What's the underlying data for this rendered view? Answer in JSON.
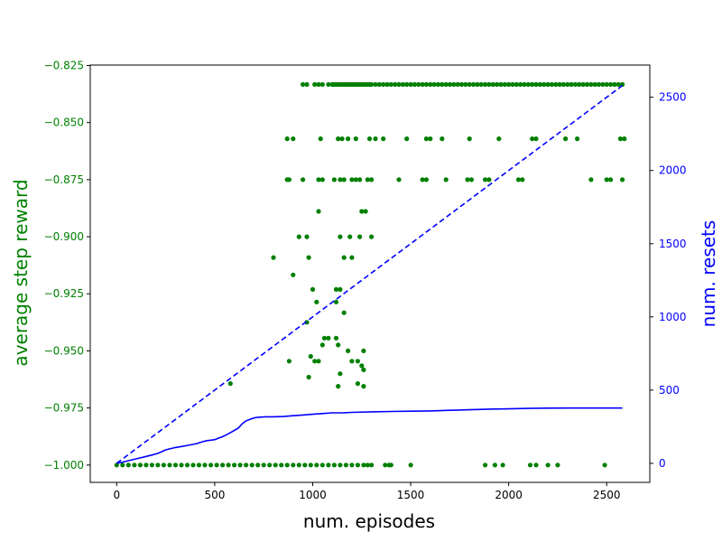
{
  "colors": {
    "left_axis": "#008000",
    "right_axis": "#0000ff",
    "frame": "#000000",
    "background": "#ffffff"
  },
  "chart_data": {
    "type": "scatter",
    "xlabel": "num. episodes",
    "ylabel_left": "average step reward",
    "ylabel_right": "num. resets",
    "xlim": [
      -135,
      2720
    ],
    "ylim_left": [
      -1.0076,
      -0.8248
    ],
    "ylim_right": [
      -130,
      2720
    ],
    "grid": false,
    "x_ticks": [
      0,
      500,
      1000,
      1500,
      2000,
      2500
    ],
    "y_left_ticks": [
      -1.0,
      -0.975,
      -0.95,
      -0.925,
      -0.9,
      -0.875,
      -0.85,
      -0.825
    ],
    "y_left_tick_labels": [
      "−1.000",
      "−0.975",
      "−0.950",
      "−0.925",
      "−0.900",
      "−0.875",
      "−0.850",
      "−0.825"
    ],
    "y_right_ticks": [
      0,
      500,
      1000,
      1500,
      2000,
      2500
    ],
    "series": [
      {
        "axis": "left",
        "style": "scatter",
        "color": "#008000",
        "x_band_bottom": [
          0,
          30,
          60,
          90,
          120,
          150,
          180,
          210,
          240,
          270,
          300,
          330,
          360,
          390,
          420,
          450,
          480,
          510,
          540,
          570,
          600,
          630,
          660,
          690,
          720,
          750,
          780,
          810,
          840,
          870,
          900,
          930,
          960,
          990,
          1020,
          1050,
          1080,
          1110,
          1140,
          1170,
          1200,
          1230,
          1260,
          1280,
          1300,
          1370,
          1390,
          1400,
          1500,
          1880,
          1930,
          1970,
          2110,
          2140,
          2200,
          2250,
          2490
        ],
        "y_band_bottom": -1.0,
        "x_band_top": [
          950,
          970,
          1010,
          1030,
          1050,
          1080,
          1100,
          1110,
          1120,
          1130,
          1140,
          1150,
          1160,
          1170,
          1180,
          1190,
          1200,
          1210,
          1220,
          1230,
          1240,
          1250,
          1260,
          1270,
          1280,
          1290,
          1300,
          1320,
          1340,
          1360,
          1380,
          1400,
          1420,
          1440,
          1460,
          1480,
          1500,
          1520,
          1540,
          1560,
          1580,
          1600,
          1620,
          1640,
          1660,
          1680,
          1700,
          1720,
          1740,
          1760,
          1780,
          1800,
          1820,
          1840,
          1860,
          1880,
          1900,
          1920,
          1940,
          1960,
          1980,
          2000,
          2020,
          2040,
          2060,
          2080,
          2100,
          2120,
          2140,
          2160,
          2180,
          2200,
          2220,
          2240,
          2260,
          2280,
          2300,
          2320,
          2340,
          2360,
          2380,
          2400,
          2420,
          2440,
          2460,
          2480,
          2500,
          2520,
          2540,
          2560,
          2580
        ],
        "y_band_top": -0.8333,
        "points": [
          [
            580,
            -0.9643
          ],
          [
            800,
            -0.9091
          ],
          [
            870,
            -0.8571
          ],
          [
            900,
            -0.8571
          ],
          [
            870,
            -0.875
          ],
          [
            880,
            -0.875
          ],
          [
            950,
            -0.875
          ],
          [
            1030,
            -0.875
          ],
          [
            1050,
            -0.875
          ],
          [
            1110,
            -0.875
          ],
          [
            1140,
            -0.875
          ],
          [
            1160,
            -0.875
          ],
          [
            1200,
            -0.875
          ],
          [
            1220,
            -0.875
          ],
          [
            1240,
            -0.875
          ],
          [
            1280,
            -0.875
          ],
          [
            1300,
            -0.875
          ],
          [
            1440,
            -0.875
          ],
          [
            1560,
            -0.875
          ],
          [
            1580,
            -0.875
          ],
          [
            1680,
            -0.875
          ],
          [
            1790,
            -0.875
          ],
          [
            1810,
            -0.875
          ],
          [
            1880,
            -0.875
          ],
          [
            1900,
            -0.875
          ],
          [
            2050,
            -0.875
          ],
          [
            2070,
            -0.875
          ],
          [
            2420,
            -0.875
          ],
          [
            2500,
            -0.875
          ],
          [
            2520,
            -0.875
          ],
          [
            2580,
            -0.875
          ],
          [
            1040,
            -0.8571
          ],
          [
            1130,
            -0.8571
          ],
          [
            1150,
            -0.8571
          ],
          [
            1180,
            -0.8571
          ],
          [
            1220,
            -0.8571
          ],
          [
            1290,
            -0.8571
          ],
          [
            1320,
            -0.8571
          ],
          [
            1360,
            -0.8571
          ],
          [
            1480,
            -0.8571
          ],
          [
            1580,
            -0.8571
          ],
          [
            1600,
            -0.8571
          ],
          [
            1660,
            -0.8571
          ],
          [
            1800,
            -0.8571
          ],
          [
            1950,
            -0.8571
          ],
          [
            2120,
            -0.8571
          ],
          [
            2140,
            -0.8571
          ],
          [
            2290,
            -0.8571
          ],
          [
            2350,
            -0.8571
          ],
          [
            2570,
            -0.8571
          ],
          [
            2590,
            -0.8571
          ],
          [
            1030,
            -0.8889
          ],
          [
            1250,
            -0.8889
          ],
          [
            1270,
            -0.8889
          ],
          [
            930,
            -0.9
          ],
          [
            970,
            -0.9
          ],
          [
            1140,
            -0.9
          ],
          [
            1190,
            -0.9
          ],
          [
            1240,
            -0.9
          ],
          [
            1300,
            -0.9
          ],
          [
            980,
            -0.9091
          ],
          [
            1160,
            -0.9091
          ],
          [
            1200,
            -0.9091
          ],
          [
            900,
            -0.9167
          ],
          [
            1000,
            -0.9231
          ],
          [
            1120,
            -0.9231
          ],
          [
            1140,
            -0.9231
          ],
          [
            1020,
            -0.9286
          ],
          [
            1120,
            -0.9286
          ],
          [
            1160,
            -0.9333
          ],
          [
            970,
            -0.9375
          ],
          [
            1060,
            -0.9444
          ],
          [
            1080,
            -0.9444
          ],
          [
            1120,
            -0.9444
          ],
          [
            1050,
            -0.9474
          ],
          [
            1130,
            -0.9474
          ],
          [
            1180,
            -0.95
          ],
          [
            1260,
            -0.95
          ],
          [
            990,
            -0.9524
          ],
          [
            880,
            -0.9545
          ],
          [
            1010,
            -0.9545
          ],
          [
            1030,
            -0.9545
          ],
          [
            1200,
            -0.9545
          ],
          [
            1230,
            -0.9545
          ],
          [
            1250,
            -0.9565
          ],
          [
            1260,
            -0.9583
          ],
          [
            1140,
            -0.96
          ],
          [
            980,
            -0.9615
          ],
          [
            1230,
            -0.9643
          ],
          [
            1130,
            -0.9655
          ],
          [
            1260,
            -0.9655
          ]
        ]
      },
      {
        "axis": "right",
        "style": "solid",
        "color": "#0000ff",
        "x": [
          0,
          30,
          60,
          90,
          120,
          150,
          180,
          210,
          230,
          250,
          280,
          300,
          330,
          360,
          390,
          410,
          420,
          440,
          460,
          480,
          500,
          520,
          540,
          560,
          580,
          600,
          620,
          640,
          660,
          680,
          700,
          720,
          760,
          800,
          850,
          900,
          950,
          1000,
          1050,
          1100,
          1150,
          1200,
          1300,
          1400,
          1500,
          1600,
          1700,
          1800,
          1900,
          2000,
          2100,
          2200,
          2300,
          2400,
          2500,
          2580
        ],
        "y": [
          0,
          8,
          18,
          28,
          37,
          47,
          57,
          68,
          80,
          92,
          102,
          108,
          115,
          122,
          130,
          135,
          140,
          148,
          155,
          158,
          162,
          172,
          182,
          195,
          210,
          225,
          240,
          270,
          290,
          300,
          310,
          315,
          318,
          318,
          320,
          325,
          330,
          335,
          340,
          345,
          345,
          348,
          352,
          354,
          356,
          358,
          362,
          366,
          370,
          372,
          375,
          377,
          378,
          378,
          378,
          378
        ]
      },
      {
        "axis": "right",
        "style": "dashed",
        "color": "#0000ff",
        "x": [
          0,
          2580
        ],
        "y": [
          0,
          2580
        ]
      }
    ]
  }
}
